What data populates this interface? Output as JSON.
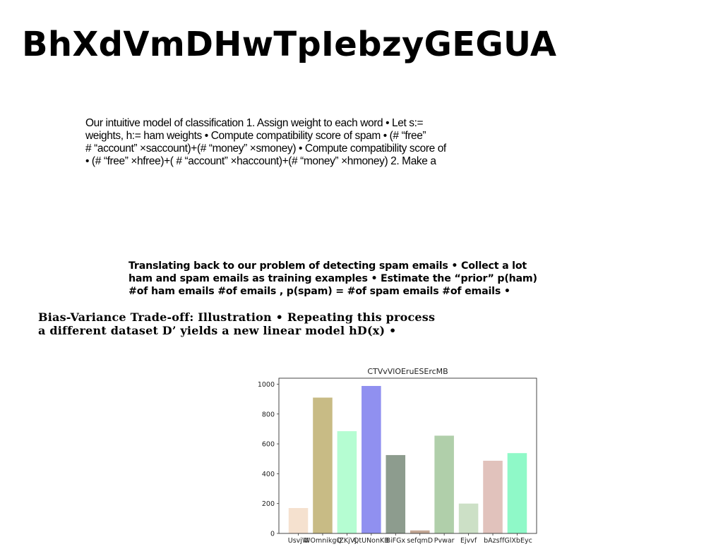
{
  "title": "BhXdVmDHwTpIebzyGEGUA",
  "paragraphs": [
    {
      "lines": [
        "Our intuitive model of classification 1. Assign weight to each word • Let s:=",
        "weights, h:= ham weights • Compute compatibility score of spam • (# “free”",
        "# “account” ×saccount)+(# “money” ×smoney) • Compute compatibility score of",
        "• (# “free” ×hfree)+( # “account” ×haccount)+(# “money” ×hmoney) 2. Make a"
      ]
    },
    {
      "lines": [
        "Translating back to our problem of detecting spam emails • Collect a lot",
        "ham and spam emails as training examples • Estimate the “prior” p(ham)",
        "#of ham emails #of emails , p(spam) = #of spam emails #of emails •"
      ]
    },
    {
      "lines": [
        "Bias-Variance Trade-off: Illustration • Repeating this process",
        "a different dataset D’ yields a new linear model hD(x) •"
      ]
    }
  ],
  "chart_data": {
    "type": "bar",
    "title": "CTVvVlOEruESErcMB",
    "xlabel": "",
    "ylabel": "",
    "categories": [
      "UsvjW",
      "WOmnikgQ",
      "iZKjVj",
      "QtUNonKB",
      "BiFGx",
      "sefqmD",
      "Pvwar",
      "Ejvvf",
      "bAzsf",
      "fGlXbEyc"
    ],
    "values": [
      170,
      910,
      685,
      988,
      525,
      20,
      655,
      200,
      487,
      538
    ],
    "colors": [
      "#f5e1cf",
      "#c8bb85",
      "#b5fdd2",
      "#9090f0",
      "#8d9c8e",
      "#c4a794",
      "#b0cfaa",
      "#cce0c6",
      "#e1c2bc",
      "#8ff9c8"
    ],
    "ylim": [
      0,
      1040
    ],
    "yticks": [
      0,
      200,
      400,
      600,
      800,
      1000
    ],
    "grid": false
  }
}
